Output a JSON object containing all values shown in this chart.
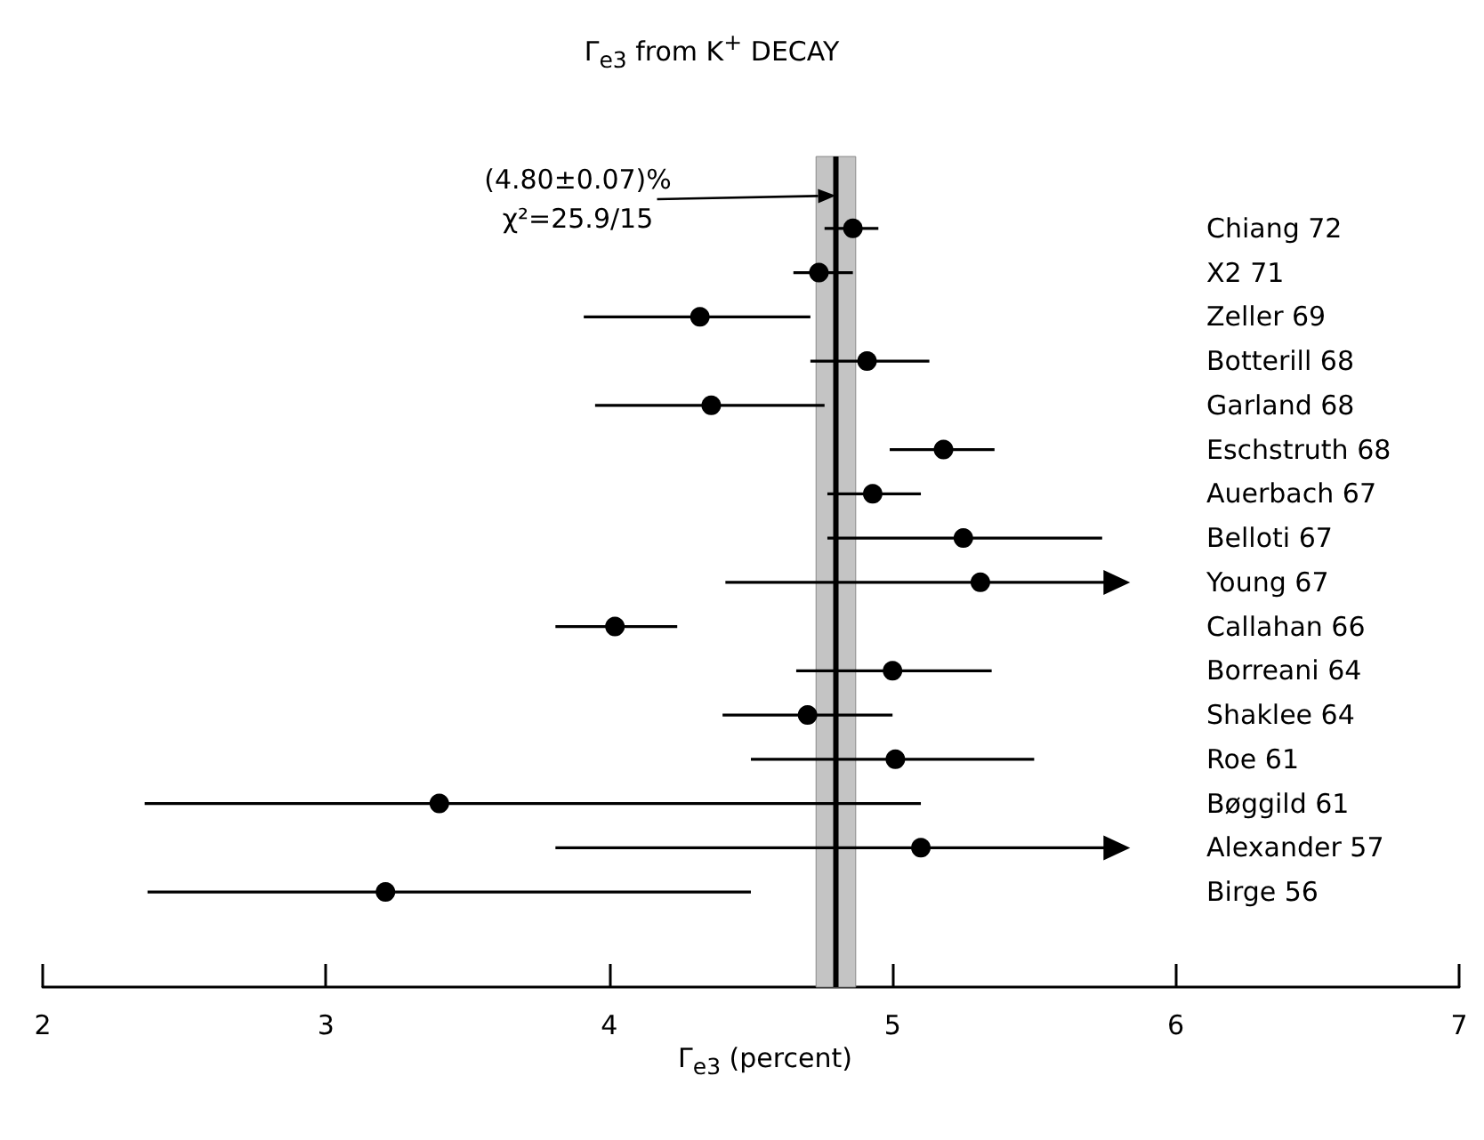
{
  "chart_data": {
    "type": "scatter",
    "orientation": "horizontal",
    "title": "Γ$_{e3}$ from K$^{+}$ DECAY",
    "xlabel": "Γ$_{e3}$ (percent)",
    "categories": [
      "Chiang 72",
      "X2 71",
      "Zeller 69",
      "Botterill 68",
      "Garland 68",
      "Eschstruth 68",
      "Auerbach 67",
      "Belloti 67",
      "Young 67",
      "Callahan 66",
      "Borreani 64",
      "Shaklee 64",
      "Roe 61",
      "Bøggild 61",
      "Alexander 57",
      "Birge 56"
    ],
    "series": [
      {
        "color": "#000000",
        "values": [
          4.86,
          4.74,
          4.32,
          4.91,
          4.36,
          5.18,
          4.93,
          5.25,
          5.31,
          4.02,
          5.0,
          4.7,
          5.01,
          3.4,
          5.1,
          3.21
        ],
        "errors": [
          [
            4.76,
            4.95
          ],
          [
            4.65,
            4.86
          ],
          [
            3.91,
            4.71
          ],
          [
            4.71,
            5.13
          ],
          [
            3.95,
            4.76
          ],
          [
            4.99,
            5.36
          ],
          [
            4.77,
            5.1
          ],
          [
            4.77,
            5.74
          ],
          [
            4.41,
            5.82
          ],
          [
            3.81,
            4.24
          ],
          [
            4.66,
            5.35
          ],
          [
            4.4,
            5.0
          ],
          [
            4.5,
            5.5
          ],
          [
            2.36,
            5.1
          ],
          [
            3.81,
            5.82
          ],
          [
            2.37,
            4.5
          ]
        ]
      }
    ],
    "xlim": [
      2,
      7
    ],
    "xticks": [
      2,
      3,
      4,
      5,
      6,
      7
    ],
    "marker": "circle",
    "ref_lines": [
      {
        "axis": "x",
        "value": 4.8,
        "label": "(4.80±0.07)%",
        "color": "#000000"
      }
    ],
    "bands": [
      {
        "axis": "x",
        "from": 4.73,
        "to": 4.87,
        "color": "#c4c4c4"
      }
    ],
    "annotations": [
      "χ²=25.9/15"
    ]
  }
}
